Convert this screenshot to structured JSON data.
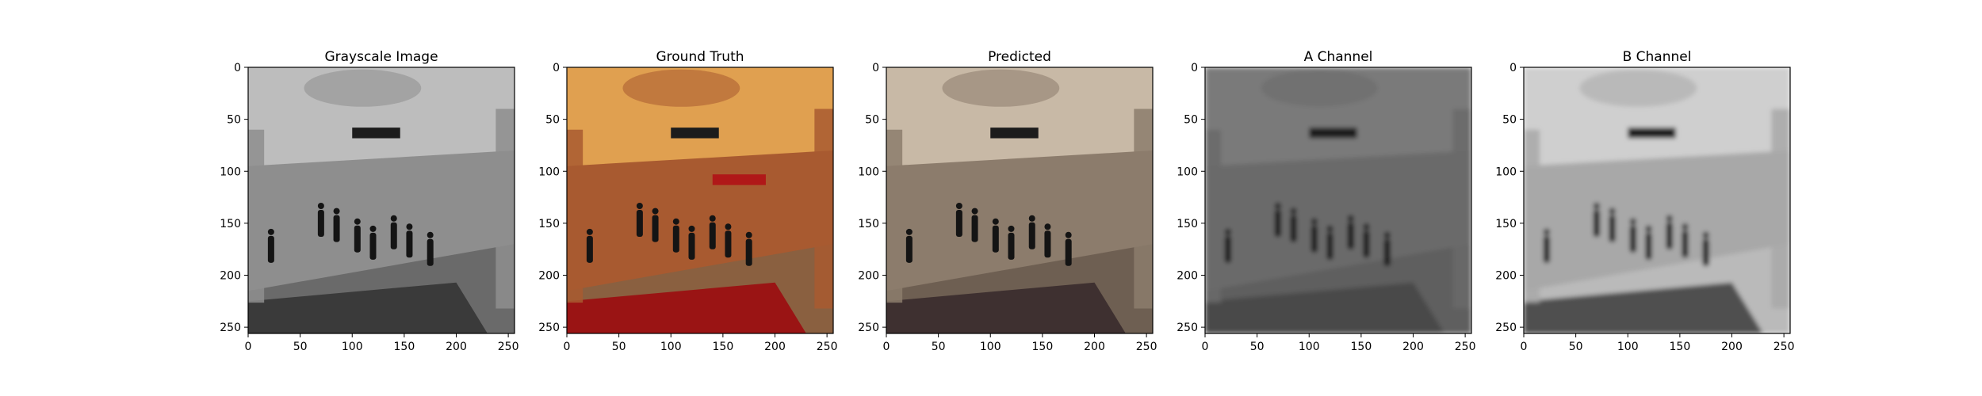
{
  "figure": {
    "background": "#ffffff"
  },
  "chart_data": [
    {
      "type": "image",
      "title": "Grayscale Image",
      "xlim": [
        0,
        256
      ],
      "ylim": [
        256,
        0
      ],
      "xticks": [
        0,
        50,
        100,
        150,
        200,
        250
      ],
      "yticks": [
        0,
        50,
        100,
        150,
        200,
        250
      ],
      "colormap": "grayscale",
      "colors": {
        "ceiling": "#bdbdbd",
        "walls": "#8e8e8e",
        "floor": "#6a6a6a",
        "carpet": "#3a3a3a"
      }
    },
    {
      "type": "image",
      "title": "Ground Truth",
      "xlim": [
        0,
        256
      ],
      "ylim": [
        256,
        0
      ],
      "xticks": [
        0,
        50,
        100,
        150,
        200,
        250
      ],
      "yticks": [
        0,
        50,
        100,
        150,
        200,
        250
      ],
      "colormap": "color",
      "colors": {
        "ceiling": "#e0a050",
        "walls": "#a85a30",
        "floor": "#8a6040",
        "carpet": "#9a1414"
      }
    },
    {
      "type": "image",
      "title": "Predicted",
      "xlim": [
        0,
        256
      ],
      "ylim": [
        256,
        0
      ],
      "xticks": [
        0,
        50,
        100,
        150,
        200,
        250
      ],
      "yticks": [
        0,
        50,
        100,
        150,
        200,
        250
      ],
      "colormap": "desaturated",
      "colors": {
        "ceiling": "#c8b9a6",
        "walls": "#8c7c6c",
        "floor": "#6e5f52",
        "carpet": "#3e3030"
      }
    },
    {
      "type": "image",
      "title": "A Channel",
      "xlim": [
        0,
        256
      ],
      "ylim": [
        256,
        0
      ],
      "xticks": [
        0,
        50,
        100,
        150,
        200,
        250
      ],
      "yticks": [
        0,
        50,
        100,
        150,
        200,
        250
      ],
      "colormap": "grayscale-blurred",
      "colors": {
        "ceiling": "#7a7a7a",
        "walls": "#6a6a6a",
        "floor": "#5e5e5e",
        "carpet": "#4a4a4a"
      }
    },
    {
      "type": "image",
      "title": "B Channel",
      "xlim": [
        0,
        256
      ],
      "ylim": [
        256,
        0
      ],
      "xticks": [
        0,
        50,
        100,
        150,
        200,
        250
      ],
      "yticks": [
        0,
        50,
        100,
        150,
        200,
        250
      ],
      "colormap": "grayscale-blurred",
      "colors": {
        "ceiling": "#cfcfcf",
        "walls": "#a8a8a8",
        "floor": "#bababa",
        "carpet": "#505050"
      }
    }
  ]
}
